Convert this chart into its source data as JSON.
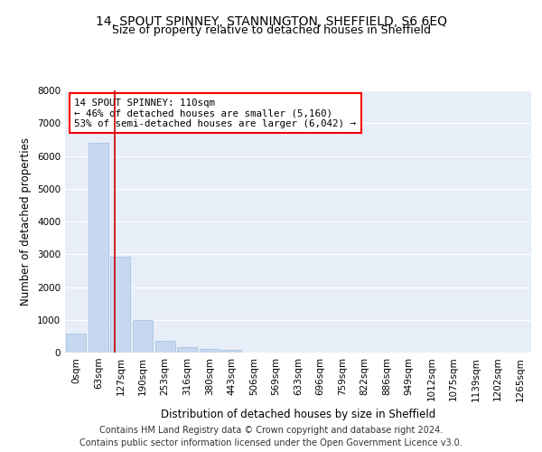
{
  "title_line1": "14, SPOUT SPINNEY, STANNINGTON, SHEFFIELD, S6 6EQ",
  "title_line2": "Size of property relative to detached houses in Sheffield",
  "xlabel": "Distribution of detached houses by size in Sheffield",
  "ylabel": "Number of detached properties",
  "bar_labels": [
    "0sqm",
    "63sqm",
    "127sqm",
    "190sqm",
    "253sqm",
    "316sqm",
    "380sqm",
    "443sqm",
    "506sqm",
    "569sqm",
    "633sqm",
    "696sqm",
    "759sqm",
    "822sqm",
    "886sqm",
    "949sqm",
    "1012sqm",
    "1075sqm",
    "1139sqm",
    "1202sqm",
    "1265sqm"
  ],
  "bar_heights": [
    580,
    6400,
    2920,
    990,
    360,
    175,
    110,
    90,
    0,
    0,
    0,
    0,
    0,
    0,
    0,
    0,
    0,
    0,
    0,
    0,
    0
  ],
  "bar_color": "#c5d8f0",
  "bar_edge_color": "#9dbfe0",
  "annotation_text": "14 SPOUT SPINNEY: 110sqm\n← 46% of detached houses are smaller (5,160)\n53% of semi-detached houses are larger (6,042) →",
  "annotation_box_color": "white",
  "annotation_box_edge_color": "red",
  "vline_x": 1.75,
  "vline_color": "#cc0000",
  "ylim": [
    0,
    8000
  ],
  "yticks": [
    0,
    1000,
    2000,
    3000,
    4000,
    5000,
    6000,
    7000,
    8000
  ],
  "background_color": "#e8eef8",
  "grid_color": "white",
  "footer_line1": "Contains HM Land Registry data © Crown copyright and database right 2024.",
  "footer_line2": "Contains public sector information licensed under the Open Government Licence v3.0.",
  "title_fontsize": 10,
  "subtitle_fontsize": 9,
  "axis_label_fontsize": 8.5,
  "tick_fontsize": 7.5,
  "footer_fontsize": 7,
  "annotation_fontsize": 7.8
}
